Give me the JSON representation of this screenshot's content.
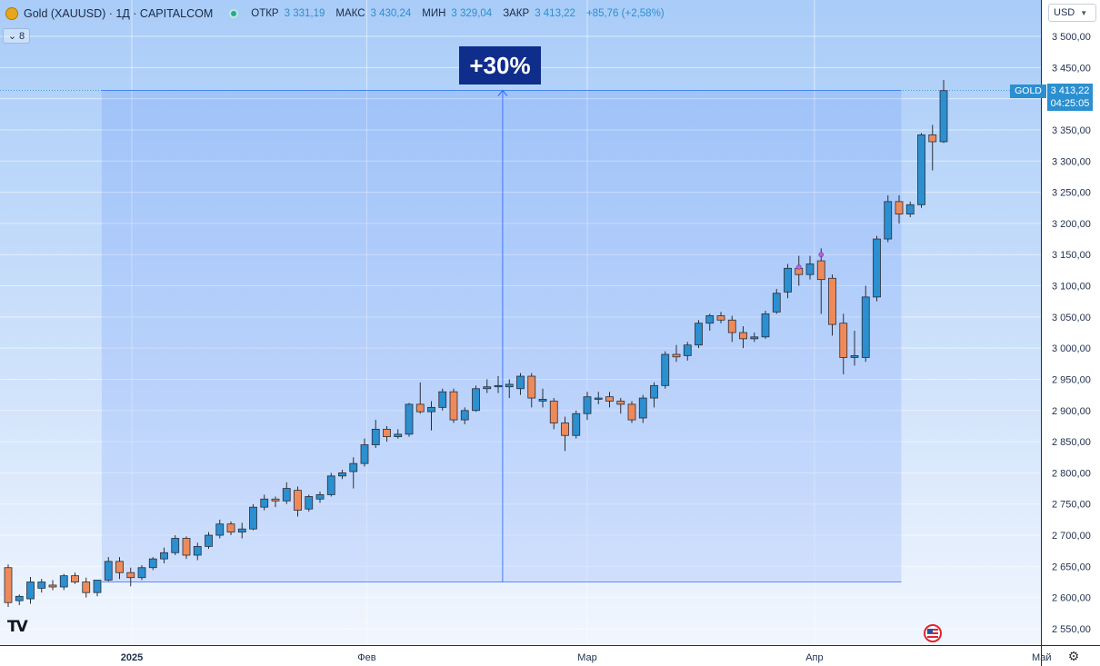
{
  "header": {
    "symbol_title": "Gold (XAUUSD) · 1Д · CAPITALCOM",
    "open_label": "ОТКР",
    "open_value": "3 331,19",
    "high_label": "МАКС",
    "high_value": "3 430,24",
    "low_label": "МИН",
    "low_value": "3 329,04",
    "close_label": "ЗАКР",
    "close_value": "3 413,22",
    "change": "+85,76 (+2,58%)",
    "indicator_count": "8"
  },
  "currency": "USD",
  "price_tag": {
    "symbol": "GOLD",
    "price": "3 413,22",
    "countdown": "04:25:05"
  },
  "measurement": {
    "label": "+30%",
    "start_price": 2625,
    "end_price": 3413.22
  },
  "colors": {
    "up": "#2b8fd0",
    "down": "#ee8a5a",
    "accent": "#0f2d8a",
    "status_green": "#22ab94"
  },
  "icons": {
    "logo": "tradingview-logo-icon",
    "flag": "us-flag-icon",
    "settings": "gear-icon",
    "symbol": "gold-coin-icon"
  },
  "chart_data": {
    "type": "candlestick",
    "ylim": [
      2525,
      3520
    ],
    "y_ticks": [
      "3 500,00",
      "3 450,00",
      "3 400,00",
      "3 350,00",
      "3 300,00",
      "3 250,00",
      "3 200,00",
      "3 150,00",
      "3 100,00",
      "3 050,00",
      "3 000,00",
      "2 950,00",
      "2 900,00",
      "2 850,00",
      "2 800,00",
      "2 750,00",
      "2 700,00",
      "2 650,00",
      "2 600,00",
      "2 550,00"
    ],
    "y_tick_values": [
      3500,
      3450,
      3400,
      3350,
      3300,
      3250,
      3200,
      3150,
      3100,
      3050,
      3000,
      2950,
      2900,
      2850,
      2800,
      2750,
      2700,
      2650,
      2600,
      2550
    ],
    "x_ticks": [
      {
        "label": "2025",
        "bold": true,
        "index": 11.1
      },
      {
        "label": "Фев",
        "bold": false,
        "index": 32.2
      },
      {
        "label": "Мар",
        "bold": false,
        "index": 52.0
      },
      {
        "label": "Апр",
        "bold": false,
        "index": 72.4
      },
      {
        "label": "Май",
        "bold": false,
        "index": 92.8
      }
    ],
    "candles": [
      [
        2648,
        2653,
        2585,
        2592
      ],
      [
        2595,
        2605,
        2588,
        2602
      ],
      [
        2598,
        2633,
        2590,
        2625
      ],
      [
        2615,
        2630,
        2608,
        2625
      ],
      [
        2620,
        2628,
        2612,
        2617
      ],
      [
        2617,
        2638,
        2612,
        2635
      ],
      [
        2635,
        2640,
        2622,
        2625
      ],
      [
        2625,
        2632,
        2600,
        2608
      ],
      [
        2608,
        2628,
        2602,
        2628
      ],
      [
        2628,
        2665,
        2626,
        2658
      ],
      [
        2658,
        2665,
        2630,
        2640
      ],
      [
        2640,
        2648,
        2618,
        2632
      ],
      [
        2632,
        2652,
        2628,
        2648
      ],
      [
        2648,
        2665,
        2644,
        2662
      ],
      [
        2662,
        2680,
        2655,
        2672
      ],
      [
        2672,
        2700,
        2668,
        2695
      ],
      [
        2695,
        2698,
        2662,
        2668
      ],
      [
        2668,
        2688,
        2660,
        2682
      ],
      [
        2682,
        2705,
        2678,
        2700
      ],
      [
        2700,
        2725,
        2695,
        2718
      ],
      [
        2718,
        2722,
        2700,
        2705
      ],
      [
        2705,
        2720,
        2695,
        2710
      ],
      [
        2710,
        2750,
        2708,
        2745
      ],
      [
        2745,
        2765,
        2740,
        2758
      ],
      [
        2758,
        2762,
        2745,
        2755
      ],
      [
        2755,
        2785,
        2750,
        2775
      ],
      [
        2772,
        2778,
        2730,
        2740
      ],
      [
        2742,
        2765,
        2738,
        2762
      ],
      [
        2758,
        2770,
        2752,
        2765
      ],
      [
        2765,
        2800,
        2762,
        2795
      ],
      [
        2795,
        2805,
        2790,
        2800
      ],
      [
        2802,
        2825,
        2775,
        2815
      ],
      [
        2815,
        2855,
        2810,
        2845
      ],
      [
        2845,
        2885,
        2840,
        2870
      ],
      [
        2870,
        2875,
        2850,
        2858
      ],
      [
        2858,
        2870,
        2855,
        2862
      ],
      [
        2862,
        2912,
        2858,
        2910
      ],
      [
        2910,
        2945,
        2895,
        2898
      ],
      [
        2898,
        2915,
        2868,
        2905
      ],
      [
        2905,
        2935,
        2900,
        2930
      ],
      [
        2930,
        2935,
        2880,
        2885
      ],
      [
        2885,
        2905,
        2878,
        2900
      ],
      [
        2900,
        2940,
        2898,
        2935
      ],
      [
        2935,
        2950,
        2928,
        2938
      ],
      [
        2938,
        2955,
        2928,
        2940
      ],
      [
        2938,
        2950,
        2920,
        2942
      ],
      [
        2935,
        2960,
        2925,
        2955
      ],
      [
        2955,
        2960,
        2905,
        2920
      ],
      [
        2915,
        2935,
        2905,
        2918
      ],
      [
        2915,
        2920,
        2870,
        2880
      ],
      [
        2880,
        2890,
        2835,
        2860
      ],
      [
        2860,
        2900,
        2855,
        2895
      ],
      [
        2895,
        2930,
        2885,
        2922
      ],
      [
        2918,
        2930,
        2910,
        2920
      ],
      [
        2922,
        2930,
        2905,
        2915
      ],
      [
        2915,
        2920,
        2895,
        2910
      ],
      [
        2910,
        2915,
        2880,
        2885
      ],
      [
        2888,
        2925,
        2880,
        2920
      ],
      [
        2920,
        2945,
        2905,
        2940
      ],
      [
        2940,
        2995,
        2935,
        2990
      ],
      [
        2990,
        3005,
        2978,
        2986
      ],
      [
        2988,
        3010,
        2980,
        3005
      ],
      [
        3005,
        3045,
        3000,
        3040
      ],
      [
        3040,
        3055,
        3028,
        3052
      ],
      [
        3052,
        3058,
        3040,
        3045
      ],
      [
        3045,
        3052,
        3010,
        3025
      ],
      [
        3025,
        3035,
        3000,
        3015
      ],
      [
        3015,
        3025,
        3010,
        3018
      ],
      [
        3018,
        3060,
        3015,
        3055
      ],
      [
        3058,
        3095,
        3055,
        3088
      ],
      [
        3090,
        3135,
        3080,
        3128
      ],
      [
        3128,
        3148,
        3100,
        3118
      ],
      [
        3118,
        3148,
        3110,
        3135
      ],
      [
        3140,
        3160,
        3055,
        3110
      ],
      [
        3112,
        3118,
        3020,
        3038
      ],
      [
        3040,
        3055,
        2958,
        2985
      ],
      [
        2985,
        3028,
        2972,
        2988
      ],
      [
        2985,
        3100,
        2978,
        3082
      ],
      [
        3082,
        3180,
        3075,
        3175
      ],
      [
        3175,
        3245,
        3170,
        3235
      ],
      [
        3235,
        3245,
        3200,
        3215
      ],
      [
        3215,
        3235,
        3210,
        3230
      ],
      [
        3230,
        3345,
        3225,
        3342
      ],
      [
        3342,
        3358,
        3285,
        3331
      ],
      [
        3331,
        3430,
        3329,
        3413
      ]
    ],
    "markers": [
      {
        "index": 71,
        "price": 3130
      },
      {
        "index": 73,
        "price": 3150
      }
    ]
  }
}
